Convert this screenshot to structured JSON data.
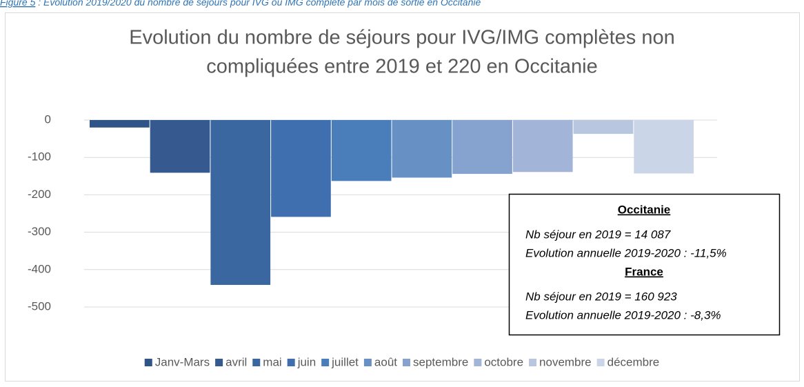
{
  "caption": {
    "label": "Figure 5",
    "text": " : Evolution 2019/2020 du nombre de séjours pour IVG ou IMG complète par mois de sortie en Occitanie"
  },
  "chart_data": {
    "type": "bar",
    "title": [
      "Evolution du nombre de séjours pour IVG/IMG complètes non",
      "compliquées entre 2019 et 220 en Occitanie"
    ],
    "series": [
      {
        "name": "Janv-Mars",
        "color": "#2e5488",
        "values": [
          -20
        ]
      },
      {
        "name": "avril",
        "color": "#36598f",
        "values": [
          -141
        ]
      },
      {
        "name": "mai",
        "color": "#3a67a0",
        "values": [
          -441
        ]
      },
      {
        "name": "juin",
        "color": "#3f6fae",
        "values": [
          -259
        ]
      },
      {
        "name": "juillet",
        "color": "#4a7ebb",
        "values": [
          -163
        ]
      },
      {
        "name": "août",
        "color": "#6791c4",
        "values": [
          -154
        ]
      },
      {
        "name": "septembre",
        "color": "#86a3cf",
        "values": [
          -144
        ]
      },
      {
        "name": "octobre",
        "color": "#a2b5d8",
        "values": [
          -139
        ]
      },
      {
        "name": "novembre",
        "color": "#b8c6e0",
        "values": [
          -37
        ]
      },
      {
        "name": "décembre",
        "color": "#cbd5e8",
        "values": [
          -143
        ]
      }
    ],
    "ylim": [
      -500,
      0
    ],
    "yticks": [
      0,
      -100,
      -200,
      -300,
      -400,
      -500
    ],
    "grid": true,
    "legend": "bottom",
    "annotation": [
      {
        "heading": "Occitanie",
        "lines": [
          "Nb séjour en 2019 = 14 087",
          "Evolution annuelle 2019-2020 : -11,5%"
        ]
      },
      {
        "heading": "France",
        "lines": [
          "Nb séjour en 2019 = 160 923",
          "Evolution annuelle 2019-2020 : -8,3%"
        ]
      }
    ]
  }
}
